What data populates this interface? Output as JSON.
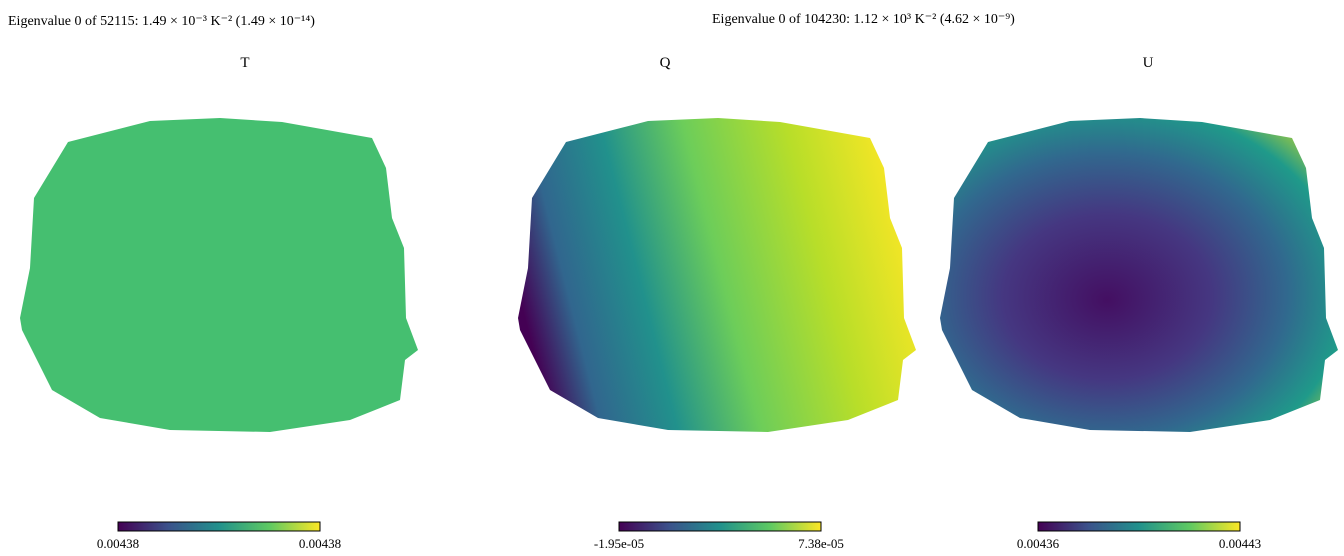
{
  "titles": [
    "Eigenvalue 0 of 52115: 1.49 × 10⁻³ K⁻² (1.49 × 10⁻¹⁴)",
    "Eigenvalue 0 of 104230: 1.12 × 10³ K⁻² (4.62 × 10⁻⁹)"
  ],
  "panels": [
    {
      "label": "T",
      "colorbar": {
        "min_label": "0.00438",
        "max_label": "0.00438"
      }
    },
    {
      "label": "Q",
      "colorbar": {
        "min_label": "-1.95e-05",
        "max_label": "7.38e-05"
      }
    },
    {
      "label": "U",
      "colorbar": {
        "min_label": "0.00436",
        "max_label": "0.00443"
      }
    }
  ]
}
